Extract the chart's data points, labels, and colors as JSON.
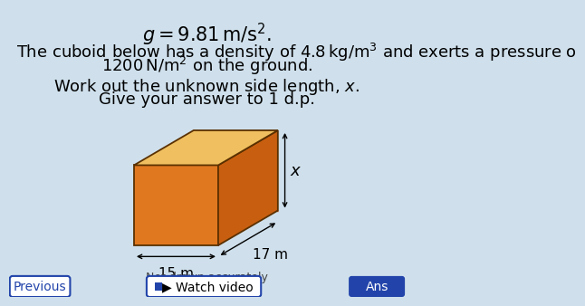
{
  "bg_color": "#cfe0ec",
  "title_text": "$g = 9.81\\,\\mathrm{m/s^2}.$",
  "line1": "The cuboid below has a density of $4.8\\,\\mathrm{kg/m^3}$ and exerts a pressure o",
  "line2": "$1200\\,\\mathrm{N/m^2}$ on the ground.",
  "instruction1": "Work out the unknown side length, $x$.",
  "instruction2": "Give your answer to 1 d.p.",
  "label_x": "$x$",
  "label_15": "15 m",
  "label_17": "17 m",
  "not_drawn": "Not drawn accurately",
  "cuboid_face_color": "#E07820",
  "cuboid_side_color": "#C85F10",
  "cuboid_top_color": "#F0C060",
  "cuboid_edge_color": "#5a3000",
  "cuboid_dashed_color": "#CC4400",
  "ans_btn_color": "#2244aa",
  "font_size_title": 15,
  "font_size_body": 13,
  "font_size_instruction": 13
}
